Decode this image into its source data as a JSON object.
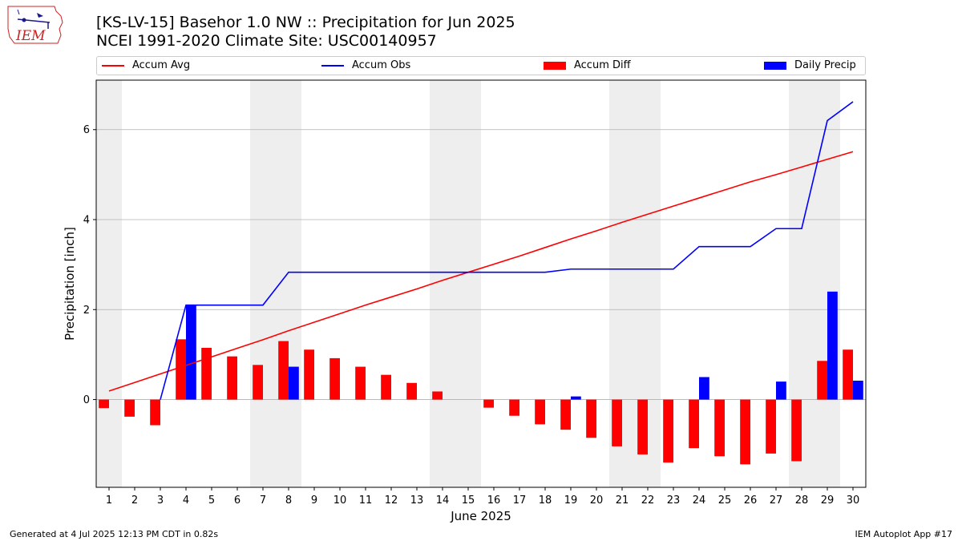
{
  "title_line1": "[KS-LV-15] Basehor 1.0 NW :: Precipitation for Jun 2025",
  "title_line2": "NCEI 1991-2020 Climate Site: USC00140957",
  "logo_text": "IEM",
  "footer_left": "Generated at 4 Jul 2025 12:13 PM CDT in 0.82s",
  "footer_right": "IEM Autoplot App #17",
  "colors": {
    "accum_avg": "#ff0000",
    "accum_obs": "#0000ff",
    "accum_diff": "#ff0000",
    "daily_precip": "#0000ff",
    "weekend_shade": "#eeeeee",
    "grid": "#b0b0b0"
  },
  "chart_data": {
    "type": "bar",
    "xlabel": "June 2025",
    "ylabel": "Precipitation [inch]",
    "ylim": [
      -1.95,
      7.1
    ],
    "yticks": [
      0,
      2,
      4,
      6
    ],
    "grid": "horizontal",
    "legend_position": "top",
    "legend": [
      "Accum Avg",
      "Accum Obs",
      "Accum Diff",
      "Daily Precip"
    ],
    "x": [
      1,
      2,
      3,
      4,
      5,
      6,
      7,
      8,
      9,
      10,
      11,
      12,
      13,
      14,
      15,
      16,
      17,
      18,
      19,
      20,
      21,
      22,
      23,
      24,
      25,
      26,
      27,
      28,
      29,
      30
    ],
    "weekend_days": [
      1,
      7,
      8,
      14,
      15,
      21,
      22,
      28,
      29
    ],
    "series": [
      {
        "name": "Accum Avg",
        "type": "line",
        "values": [
          0.19,
          0.38,
          0.57,
          0.76,
          0.95,
          1.14,
          1.33,
          1.53,
          1.72,
          1.91,
          2.1,
          2.28,
          2.46,
          2.65,
          2.83,
          3.01,
          3.19,
          3.38,
          3.57,
          3.75,
          3.94,
          4.12,
          4.3,
          4.48,
          4.66,
          4.84,
          5.0,
          5.17,
          5.34,
          5.51
        ]
      },
      {
        "name": "Accum Obs",
        "type": "line",
        "values": [
          0.0,
          0.0,
          0.0,
          2.1,
          2.1,
          2.1,
          2.1,
          2.83,
          2.83,
          2.83,
          2.83,
          2.83,
          2.83,
          2.83,
          2.83,
          2.83,
          2.83,
          2.83,
          2.9,
          2.9,
          2.9,
          2.9,
          2.9,
          3.4,
          3.4,
          3.4,
          3.8,
          3.8,
          6.2,
          6.62
        ]
      },
      {
        "name": "Accum Diff",
        "type": "bar",
        "values": [
          -0.19,
          -0.38,
          -0.57,
          1.34,
          1.15,
          0.96,
          0.77,
          1.3,
          1.11,
          0.92,
          0.73,
          0.55,
          0.37,
          0.18,
          0.0,
          -0.18,
          -0.36,
          -0.55,
          -0.67,
          -0.85,
          -1.04,
          -1.22,
          -1.4,
          -1.08,
          -1.26,
          -1.44,
          -1.2,
          -1.37,
          0.86,
          1.11
        ]
      },
      {
        "name": "Daily Precip",
        "type": "bar",
        "values": [
          0.0,
          0.0,
          0.0,
          2.1,
          0.0,
          0.0,
          0.0,
          0.73,
          0.0,
          0.0,
          0.0,
          0.0,
          0.0,
          0.0,
          0.0,
          0.0,
          0.0,
          0.0,
          0.07,
          0.0,
          0.0,
          0.0,
          0.0,
          0.5,
          0.0,
          0.0,
          0.4,
          0.0,
          2.4,
          0.42
        ]
      }
    ]
  }
}
